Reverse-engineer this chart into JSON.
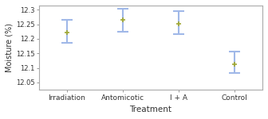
{
  "categories": [
    "Irradiation",
    "Antomicotic",
    "I + A",
    "Control"
  ],
  "means": [
    12.222,
    12.265,
    12.251,
    12.112
  ],
  "ci_upper": [
    12.265,
    12.305,
    12.295,
    12.155
  ],
  "ci_lower": [
    12.185,
    12.225,
    12.215,
    12.082
  ],
  "marker_colors": [
    "#a0a832",
    "#a0a832",
    "#a0a832",
    "#a0a832"
  ],
  "line_color": "#a0b8e8",
  "xlabel": "Treatment",
  "ylabel": "Moisture (%)",
  "ylim": [
    12.025,
    12.315
  ],
  "yticks": [
    12.05,
    12.1,
    12.15,
    12.2,
    12.25,
    12.3
  ],
  "background_color": "#ffffff",
  "plot_bg": "#ffffff",
  "spine_color": "#aaaaaa",
  "tick_color": "#888888"
}
